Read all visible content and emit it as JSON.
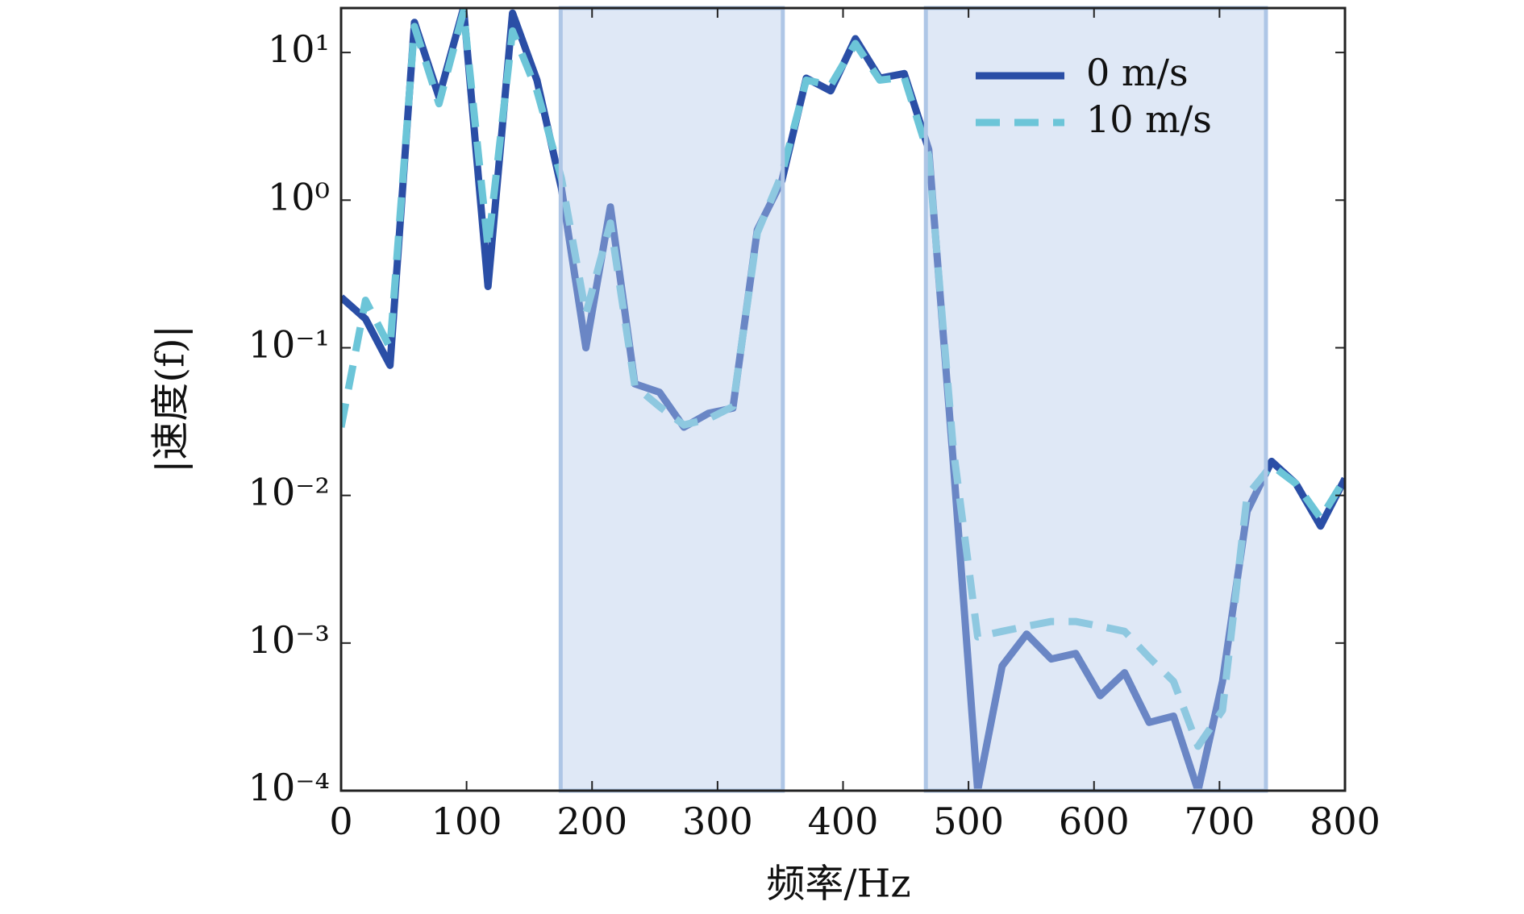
{
  "chart_data": {
    "type": "line",
    "x_label": "频率/Hz",
    "y_label": "|速度(f)|",
    "x": [
      0,
      19.5,
      39.0,
      58.5,
      78.0,
      97.6,
      117.1,
      136.6,
      156.1,
      175.6,
      195.1,
      214.6,
      234.1,
      253.7,
      273.2,
      292.7,
      312.2,
      331.7,
      351.2,
      370.7,
      390.2,
      409.8,
      429.3,
      448.8,
      468.3,
      487.8,
      507.3,
      526.8,
      546.3,
      565.9,
      585.4,
      604.9,
      624.4,
      643.9,
      663.4,
      682.9,
      702.4,
      722.0,
      741.5,
      761.0,
      780.5,
      800
    ],
    "series": [
      {
        "name": "0 m/s",
        "color": "#2a4ea6",
        "dashed": false,
        "values": [
          0.22,
          0.157,
          0.076,
          16,
          5.0,
          20,
          0.26,
          18.5,
          6.5,
          1.2,
          0.1,
          0.9,
          0.057,
          0.05,
          0.029,
          0.036,
          0.039,
          0.63,
          1.35,
          6.7,
          5.5,
          12.4,
          6.7,
          7.2,
          2.2,
          0.017,
          0.0001,
          0.0007,
          0.00115,
          0.00078,
          0.00085,
          0.00044,
          0.00063,
          0.00029,
          0.00032,
          0.0001,
          0.00055,
          0.0078,
          0.017,
          0.012,
          0.0062,
          0.013
        ]
      },
      {
        "name": "10 m/s",
        "color": "#6cc5d8",
        "dashed": true,
        "values": [
          0.029,
          0.21,
          0.1,
          15,
          4.5,
          19,
          0.48,
          14,
          5.5,
          1.4,
          0.17,
          0.7,
          0.055,
          0.04,
          0.03,
          0.033,
          0.04,
          0.6,
          1.5,
          6.5,
          6.0,
          11.5,
          6.5,
          6.8,
          2.0,
          0.021,
          0.0011,
          0.0012,
          0.0013,
          0.0014,
          0.0014,
          0.0013,
          0.0012,
          0.0008,
          0.00055,
          0.0002,
          0.00035,
          0.01,
          0.016,
          0.012,
          0.007,
          0.013
        ]
      }
    ],
    "highlight_ranges": [
      [
        175,
        352
      ],
      [
        466,
        737
      ]
    ],
    "xlim": [
      0,
      800
    ],
    "xticks": [
      0,
      100,
      200,
      300,
      400,
      500,
      600,
      700,
      800
    ],
    "ylim": [
      0.0001,
      20
    ],
    "log_y": true,
    "yticks": [
      {
        "value": 0.0001,
        "label": "10⁻⁴"
      },
      {
        "value": 0.001,
        "label": "10⁻³"
      },
      {
        "value": 0.01,
        "label": "10⁻²"
      },
      {
        "value": 0.1,
        "label": "10⁻¹"
      },
      {
        "value": 1,
        "label": "10⁰"
      },
      {
        "value": 10,
        "label": "10¹"
      }
    ],
    "legend": "upper right",
    "grid": false
  }
}
